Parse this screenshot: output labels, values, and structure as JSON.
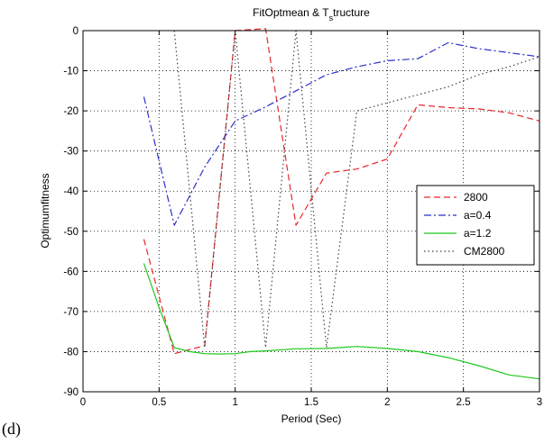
{
  "panel_label": "(d)",
  "chart_data": {
    "type": "line",
    "title_main": "FitOptmean & T",
    "title_sub": "s",
    "title_rest": "tructure",
    "xlabel": "Period (Sec)",
    "ylabel": "Optimumfitness",
    "xlim": [
      0,
      3
    ],
    "ylim": [
      -90,
      0
    ],
    "xticks": [
      0,
      0.5,
      1,
      1.5,
      2,
      2.5,
      3
    ],
    "xtick_labels": [
      "0",
      "0.5",
      "1",
      "1.5",
      "2",
      "2.5",
      "3"
    ],
    "yticks": [
      0,
      -10,
      -20,
      -30,
      -40,
      -50,
      -60,
      -70,
      -80,
      -90
    ],
    "ytick_labels": [
      "0",
      "-10",
      "-20",
      "-30",
      "-40",
      "-50",
      "-60",
      "-70",
      "-80",
      "-90"
    ],
    "grid": true,
    "legend_position": "right",
    "series": [
      {
        "name": "2800",
        "color": "#e8272b",
        "dash": "dashed",
        "x": [
          0.4,
          0.6,
          0.8,
          1.0,
          1.2,
          1.4,
          1.6,
          1.8,
          2.0,
          2.2,
          2.4,
          2.6,
          2.8,
          3.0
        ],
        "y": [
          -52,
          -80.5,
          -78.5,
          0,
          0.5,
          -48.5,
          -35.5,
          -34.5,
          -32,
          -18.5,
          -19.2,
          -19.5,
          -20.5,
          -22.5
        ]
      },
      {
        "name": "a=0.4",
        "color": "#2b2fc9",
        "dash": "dashdot",
        "x": [
          0.4,
          0.6,
          0.8,
          1.0,
          1.2,
          1.4,
          1.6,
          1.8,
          2.0,
          2.2,
          2.4,
          2.6,
          2.8,
          3.0
        ],
        "y": [
          -16.5,
          -48.5,
          -34,
          -22.5,
          -19,
          -15,
          -11,
          -9,
          -7.5,
          -7,
          -3,
          -4.5,
          -5.5,
          -6.5
        ]
      },
      {
        "name": "a=1.2",
        "color": "#1ec81e",
        "dash": "solid",
        "x": [
          0.4,
          0.5,
          0.6,
          0.7,
          0.8,
          0.9,
          1.0,
          1.1,
          1.2,
          1.4,
          1.6,
          1.8,
          2.0,
          2.2,
          2.4,
          2.6,
          2.8,
          3.0
        ],
        "y": [
          -58,
          -69,
          -79,
          -80,
          -80.5,
          -80.6,
          -80.5,
          -80,
          -79.8,
          -79.3,
          -79.2,
          -78.7,
          -79.2,
          -80,
          -81.5,
          -83.5,
          -85.8,
          -86.8
        ]
      },
      {
        "name": "CM2800",
        "color": "#444444",
        "dash": "dotted",
        "x": [
          0.6,
          0.8,
          1.0,
          1.2,
          1.4,
          1.6,
          1.8,
          2.0,
          2.2,
          2.4,
          2.6,
          2.8,
          3.0
        ],
        "y": [
          0,
          -79,
          0,
          -79,
          0,
          -79,
          -20,
          -18,
          -16,
          -14,
          -11,
          -9,
          -6.5
        ]
      }
    ]
  }
}
